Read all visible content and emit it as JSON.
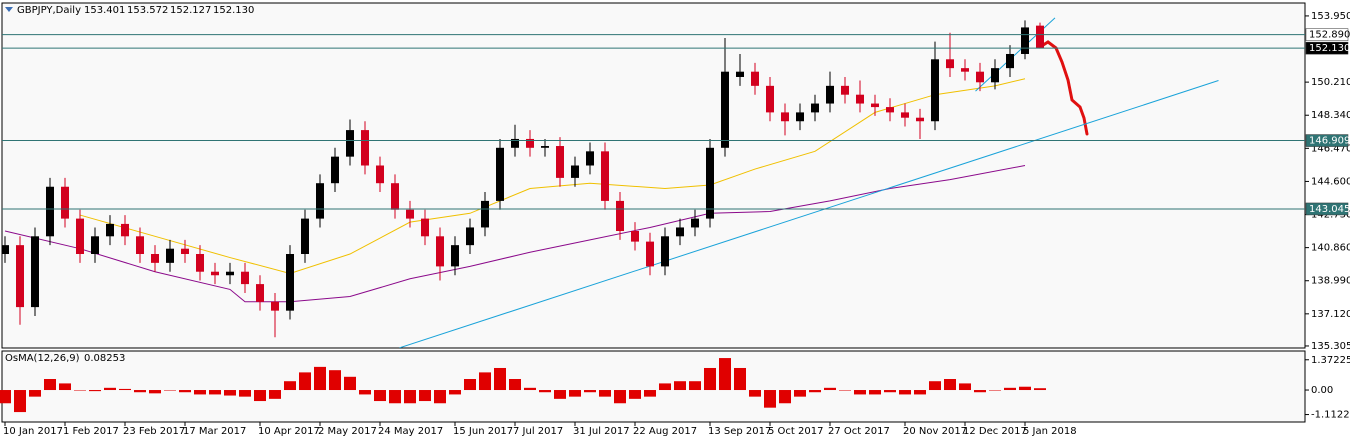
{
  "chart_data": [
    {
      "type": "candlestick",
      "title": "GBPJPY,Daily",
      "last_bar_labels": [
        "153.401",
        "153.572",
        "152.127",
        "152.130"
      ],
      "up_color": "#000000",
      "down_color": "#d2001e",
      "categories": [
        "10 Jan 2017",
        null,
        null,
        null,
        "1 Feb 2017",
        null,
        null,
        null,
        "23 Feb 2017",
        null,
        null,
        null,
        "17 Mar 2017",
        null,
        null,
        null,
        null,
        "10 Apr 2017",
        null,
        null,
        null,
        "2 May 2017",
        null,
        null,
        null,
        "24 May 2017",
        null,
        null,
        null,
        null,
        "15 Jun 2017",
        null,
        null,
        null,
        "7 Jul 2017",
        null,
        null,
        null,
        "31 Jul 2017",
        null,
        null,
        null,
        "22 Aug 2017",
        null,
        null,
        null,
        null,
        "13 Sep 2017",
        null,
        null,
        null,
        "5 Oct 2017",
        null,
        null,
        null,
        "27 Oct 2017",
        null,
        null,
        null,
        null,
        "20 Nov 2017",
        null,
        null,
        null,
        "12 Dec 2017",
        null,
        null,
        null,
        "5 Jan 2018",
        null
      ],
      "open": [
        140.5,
        141.0,
        137.5,
        141.5,
        144.3,
        142.5,
        140.5,
        141.5,
        142.2,
        141.5,
        140.5,
        140.0,
        140.8,
        140.5,
        139.5,
        139.3,
        139.5,
        138.8,
        137.8,
        137.3,
        140.5,
        142.5,
        144.5,
        146.0,
        147.5,
        145.5,
        144.5,
        143.0,
        142.5,
        141.5,
        139.8,
        141.0,
        142.0,
        143.5,
        146.5,
        147.0,
        146.5,
        146.6,
        144.8,
        145.5,
        146.3,
        143.5,
        141.8,
        141.2,
        139.8,
        141.5,
        142.0,
        142.5,
        146.5,
        150.5,
        150.8,
        150.0,
        148.5,
        148.0,
        148.5,
        149.0,
        150.0,
        149.5,
        149.0,
        148.8,
        148.5,
        148.2,
        148.0,
        151.5,
        151.0,
        150.8,
        150.2,
        151.0,
        151.8,
        153.401
      ],
      "high": [
        141.5,
        141.5,
        142.0,
        144.8,
        144.8,
        143.0,
        142.0,
        142.7,
        142.7,
        142.0,
        141.0,
        141.3,
        141.3,
        141.0,
        140.0,
        140.0,
        140.0,
        139.3,
        138.3,
        141.0,
        143.0,
        145.0,
        146.5,
        148.1,
        148.0,
        146.0,
        145.0,
        143.5,
        143.0,
        142.0,
        141.5,
        142.5,
        144.0,
        147.0,
        147.8,
        147.5,
        147.0,
        147.1,
        146.0,
        146.8,
        146.8,
        144.0,
        142.3,
        141.7,
        142.0,
        142.5,
        143.0,
        147.0,
        152.7,
        151.8,
        151.3,
        150.5,
        149.0,
        149.0,
        149.5,
        150.8,
        150.5,
        150.3,
        149.5,
        149.3,
        149.0,
        148.7,
        152.5,
        153.0,
        151.5,
        151.3,
        151.5,
        152.3,
        153.7,
        153.572
      ],
      "low": [
        140.0,
        136.5,
        137.0,
        141.0,
        142.0,
        140.0,
        140.0,
        141.0,
        141.0,
        140.0,
        139.5,
        139.5,
        140.0,
        139.0,
        138.8,
        138.8,
        138.3,
        137.3,
        135.8,
        136.8,
        140.0,
        142.0,
        144.0,
        145.5,
        145.0,
        144.0,
        142.5,
        142.0,
        141.0,
        139.0,
        139.3,
        140.5,
        141.5,
        143.0,
        146.0,
        146.0,
        146.0,
        144.3,
        144.3,
        145.0,
        143.0,
        141.3,
        140.7,
        139.3,
        139.3,
        141.0,
        141.5,
        142.0,
        146.0,
        150.0,
        149.5,
        148.0,
        147.2,
        147.5,
        148.0,
        148.5,
        149.0,
        148.5,
        148.3,
        148.0,
        147.7,
        147.0,
        147.5,
        150.5,
        150.3,
        149.7,
        149.8,
        150.5,
        151.5,
        152.127
      ],
      "close": [
        141.0,
        137.5,
        141.5,
        144.3,
        142.5,
        140.5,
        141.5,
        142.2,
        141.5,
        140.5,
        140.0,
        140.8,
        140.5,
        139.5,
        139.3,
        139.5,
        138.8,
        137.8,
        137.3,
        140.5,
        142.5,
        144.5,
        146.0,
        147.5,
        145.5,
        144.5,
        143.0,
        142.5,
        141.5,
        139.8,
        141.0,
        142.0,
        143.5,
        146.5,
        147.0,
        146.5,
        146.6,
        144.8,
        145.5,
        146.3,
        143.5,
        141.8,
        141.2,
        139.8,
        141.5,
        142.0,
        142.5,
        146.5,
        150.8,
        150.8,
        150.0,
        148.5,
        148.0,
        148.5,
        149.0,
        150.0,
        149.5,
        149.0,
        148.8,
        148.5,
        148.2,
        148.0,
        151.5,
        151.0,
        150.8,
        150.2,
        151.0,
        151.8,
        153.3,
        152.13
      ],
      "ylim": [
        135.19,
        154.68
      ],
      "yticks": [
        {
          "value": 153.95,
          "label": "153.950"
        },
        {
          "value": 150.21,
          "label": "150.210"
        },
        {
          "value": 148.34,
          "label": "148.340"
        },
        {
          "value": 146.47,
          "label": "146.470"
        },
        {
          "value": 144.6,
          "label": "144.600"
        },
        {
          "value": 142.73,
          "label": "142.730"
        },
        {
          "value": 140.86,
          "label": "140.860"
        },
        {
          "value": 138.99,
          "label": "138.990"
        },
        {
          "value": 137.12,
          "label": "137.120"
        },
        135.305
      ],
      "levels": [
        {
          "value": 152.89,
          "label": "152.890",
          "color": "#ffffff",
          "text_color": "#000000"
        },
        {
          "value": 152.13,
          "label": "152.130",
          "color": "#000000",
          "text_color": "#ffffff"
        },
        {
          "value": 146.909,
          "label": "146.909",
          "color": "#2f7474",
          "text_color": "#ffffff"
        },
        {
          "value": 143.045,
          "label": "143.045",
          "color": "#2f7474",
          "text_color": "#ffffff"
        }
      ],
      "level_line_color": "#2f7474",
      "lines": [
        {
          "color": "#f0c000",
          "x": [
            5,
            10,
            15,
            19,
            23,
            27,
            31,
            35,
            39,
            44,
            47,
            50,
            54,
            58,
            62,
            66,
            68
          ],
          "values": [
            142.7,
            141.5,
            140.3,
            139.4,
            140.5,
            142.3,
            142.8,
            144.2,
            144.5,
            144.2,
            144.4,
            145.3,
            146.3,
            148.5,
            149.5,
            150.0,
            150.4
          ]
        },
        {
          "color": "#8b0a8b",
          "x": [
            0,
            5,
            10,
            15,
            16,
            19,
            23,
            27,
            31,
            35,
            39,
            43,
            47,
            51,
            55,
            59,
            63,
            68
          ],
          "values": [
            141.8,
            140.8,
            139.5,
            138.5,
            137.8,
            137.8,
            138.1,
            139.1,
            139.8,
            140.6,
            141.3,
            142.0,
            142.8,
            142.9,
            143.5,
            144.2,
            144.7,
            145.5
          ]
        },
        {
          "color": "#1aa3d9",
          "x": [
            26.3,
            80.9
          ],
          "values": [
            135.2,
            150.3
          ]
        },
        {
          "color": "#1aa3d9",
          "x": [
            64.7,
            70
          ],
          "values": [
            149.7,
            153.84
          ]
        }
      ]
    },
    {
      "type": "bar",
      "title": "OsMA(12,26,9)",
      "color": "#e00000",
      "values": [
        -0.6,
        -1.0,
        -0.3,
        0.5,
        0.3,
        0.0,
        -0.05,
        0.1,
        0.05,
        -0.1,
        -0.15,
        0.0,
        -0.1,
        -0.2,
        -0.2,
        -0.25,
        -0.3,
        -0.5,
        -0.4,
        0.4,
        0.8,
        1.05,
        0.9,
        0.6,
        -0.2,
        -0.5,
        -0.6,
        -0.6,
        -0.5,
        -0.6,
        -0.2,
        0.5,
        0.8,
        1.0,
        0.5,
        0.1,
        -0.1,
        -0.4,
        -0.3,
        -0.1,
        -0.3,
        -0.6,
        -0.4,
        -0.3,
        0.3,
        0.4,
        0.4,
        1.0,
        1.45,
        1.0,
        -0.3,
        -0.8,
        -0.6,
        -0.3,
        -0.1,
        0.1,
        0.0,
        -0.2,
        -0.2,
        -0.1,
        -0.2,
        -0.2,
        0.4,
        0.5,
        0.3,
        -0.1,
        0.0,
        0.1,
        0.15,
        0.08253
      ],
      "ylim": [
        -1.45,
        1.77
      ],
      "yticks": [
        1.37225,
        {
          "value": 0,
          "label": "0.00"
        },
        -1.11221
      ]
    }
  ]
}
